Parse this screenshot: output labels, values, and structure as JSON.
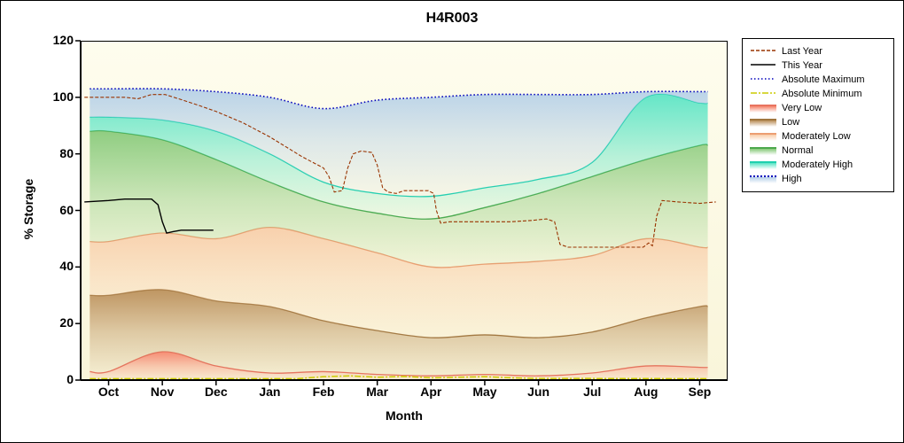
{
  "chart_data": {
    "type": "area",
    "title": "H4R003",
    "xlabel": "Month",
    "ylabel": "% Storage",
    "ylim": [
      0,
      120
    ],
    "y_ticks": [
      0,
      20,
      40,
      60,
      80,
      100,
      120
    ],
    "x_categories": [
      "Oct",
      "Nov",
      "Dec",
      "Jan",
      "Feb",
      "Mar",
      "Apr",
      "May",
      "Jun",
      "Jul",
      "Aug",
      "Sep"
    ],
    "x_domain": [
      -0.52,
      11.52
    ],
    "plot_bg": [
      "#fefdee",
      "#f9f5da"
    ],
    "band_x": [
      -0.35,
      0,
      1,
      2,
      3,
      4,
      5,
      6,
      7,
      8,
      9,
      10,
      11,
      11.15
    ],
    "bands": [
      {
        "label": "Very Low",
        "fill": "#f5846b",
        "edge": "#e8735f",
        "top": [
          3,
          3,
          10,
          5,
          2.5,
          3,
          2,
          1.5,
          2,
          1.5,
          2.5,
          5,
          4.5,
          4.5
        ]
      },
      {
        "label": "Low",
        "fill": "#b98d57",
        "edge": "#a0763f",
        "top": [
          30,
          30,
          32,
          28,
          26,
          21,
          17.5,
          15,
          16,
          15,
          17,
          22,
          26,
          26
        ]
      },
      {
        "label": "Moderately Low",
        "fill": "#f8cda8",
        "edge": "#ec9e72",
        "top": [
          49,
          49,
          52,
          50,
          54,
          50,
          45,
          40,
          41,
          42,
          44,
          50,
          47,
          47
        ]
      },
      {
        "label": "Normal",
        "fill": "#86c978",
        "edge": "#4ca84c",
        "top": [
          88,
          88,
          85,
          78,
          70,
          63,
          59,
          57,
          61,
          66,
          72,
          78,
          83,
          83
        ]
      },
      {
        "label": "Moderately High",
        "fill": "#57e4c4",
        "edge": "#1fcfae",
        "top": [
          93,
          93,
          92,
          88,
          80,
          70,
          66,
          65,
          68,
          71,
          77,
          100,
          98,
          98
        ]
      },
      {
        "label": "High",
        "fill": "#b4cfe8",
        "edge": null,
        "top": [
          103,
          103,
          103,
          102,
          100,
          96,
          99,
          100,
          101,
          101,
          101,
          102,
          102,
          102
        ]
      }
    ],
    "series": [
      {
        "label": "Last Year",
        "color": "#993300",
        "dash": "4 2",
        "width": 1.1,
        "smooth": false,
        "points": [
          [
            -0.45,
            100
          ],
          [
            0.3,
            100
          ],
          [
            0.55,
            99.5
          ],
          [
            0.8,
            101
          ],
          [
            1.05,
            101
          ],
          [
            1.3,
            99.5
          ],
          [
            1.7,
            97
          ],
          [
            2.0,
            95
          ],
          [
            2.5,
            91
          ],
          [
            3.0,
            86
          ],
          [
            3.3,
            82.5
          ],
          [
            3.6,
            79
          ],
          [
            4.0,
            75
          ],
          [
            4.1,
            72
          ],
          [
            4.2,
            66.5
          ],
          [
            4.35,
            67
          ],
          [
            4.45,
            75
          ],
          [
            4.55,
            80
          ],
          [
            4.7,
            81
          ],
          [
            4.9,
            80.5
          ],
          [
            5.0,
            76
          ],
          [
            5.1,
            68
          ],
          [
            5.2,
            66.5
          ],
          [
            5.35,
            66
          ],
          [
            5.5,
            67
          ],
          [
            5.95,
            67
          ],
          [
            6.05,
            66
          ],
          [
            6.1,
            60
          ],
          [
            6.18,
            55.5
          ],
          [
            6.35,
            56
          ],
          [
            6.7,
            56
          ],
          [
            7.1,
            56
          ],
          [
            7.5,
            56
          ],
          [
            7.9,
            56.5
          ],
          [
            8.15,
            57
          ],
          [
            8.3,
            56
          ],
          [
            8.4,
            48
          ],
          [
            8.55,
            47
          ],
          [
            9.0,
            47
          ],
          [
            9.5,
            47
          ],
          [
            9.95,
            47
          ],
          [
            10.05,
            48.5
          ],
          [
            10.12,
            47.5
          ],
          [
            10.2,
            58
          ],
          [
            10.3,
            63.5
          ],
          [
            10.6,
            63
          ],
          [
            11.0,
            62.5
          ],
          [
            11.3,
            63
          ]
        ]
      },
      {
        "label": "This Year",
        "color": "#000000",
        "dash": "",
        "width": 1.4,
        "smooth": false,
        "points": [
          [
            -0.45,
            63
          ],
          [
            0.0,
            63.5
          ],
          [
            0.3,
            64
          ],
          [
            0.6,
            64
          ],
          [
            0.8,
            64
          ],
          [
            0.92,
            62
          ],
          [
            1.0,
            56
          ],
          [
            1.08,
            52
          ],
          [
            1.2,
            52.5
          ],
          [
            1.35,
            53
          ],
          [
            1.6,
            53
          ],
          [
            1.8,
            53
          ],
          [
            1.95,
            53
          ]
        ]
      },
      {
        "label": "Absolute Maximum",
        "color": "#0000bb",
        "dash": "1.5 2.5",
        "width": 1.6,
        "smooth": true,
        "points": [
          [
            -0.35,
            103
          ],
          [
            0,
            103
          ],
          [
            1,
            103
          ],
          [
            2,
            102
          ],
          [
            3,
            100
          ],
          [
            4,
            96
          ],
          [
            5,
            99
          ],
          [
            6,
            100
          ],
          [
            7,
            101
          ],
          [
            8,
            101
          ],
          [
            9,
            101
          ],
          [
            10,
            102
          ],
          [
            11,
            102
          ],
          [
            11.15,
            102
          ]
        ]
      },
      {
        "label": "Absolute Minimum",
        "color": "#cccc00",
        "dash": "7 2 2 2",
        "width": 1.5,
        "smooth": false,
        "points": [
          [
            -0.35,
            0.5
          ],
          [
            3.5,
            0.5
          ],
          [
            4,
            1.2
          ],
          [
            4.5,
            1.5
          ],
          [
            5,
            1
          ],
          [
            5.5,
            1.3
          ],
          [
            6,
            0.8
          ],
          [
            6.5,
            1
          ],
          [
            7,
            1.2
          ],
          [
            7.5,
            0.8
          ],
          [
            8,
            0.6
          ],
          [
            11.15,
            0.5
          ]
        ]
      }
    ],
    "legend": [
      {
        "label": "Last Year",
        "type": "line",
        "color": "#993300",
        "dash": "4 2"
      },
      {
        "label": "This Year",
        "type": "line",
        "color": "#000000",
        "dash": ""
      },
      {
        "label": "Absolute Maximum",
        "type": "line",
        "color": "#0000bb",
        "dash": "1.5 2.5"
      },
      {
        "label": "Absolute Minimum",
        "type": "line",
        "color": "#cccc00",
        "dash": "7 2 2 2"
      },
      {
        "label": "Very Low",
        "type": "swatch",
        "fill": "#f5846b",
        "edge": "#e8735f"
      },
      {
        "label": "Low",
        "type": "swatch",
        "fill": "#b98d57",
        "edge": "#a0763f"
      },
      {
        "label": "Moderately Low",
        "type": "swatch",
        "fill": "#f8cda8",
        "edge": "#ec9e72"
      },
      {
        "label": "Normal",
        "type": "swatch",
        "fill": "#86c978",
        "edge": "#4ca84c"
      },
      {
        "label": "Moderately High",
        "type": "swatch",
        "fill": "#57e4c4",
        "edge": "#1fcfae"
      },
      {
        "label": "High",
        "type": "swatch",
        "fill": "#b4cfe8",
        "edge": "#0000bb",
        "edge_dash": "dotted"
      }
    ]
  }
}
